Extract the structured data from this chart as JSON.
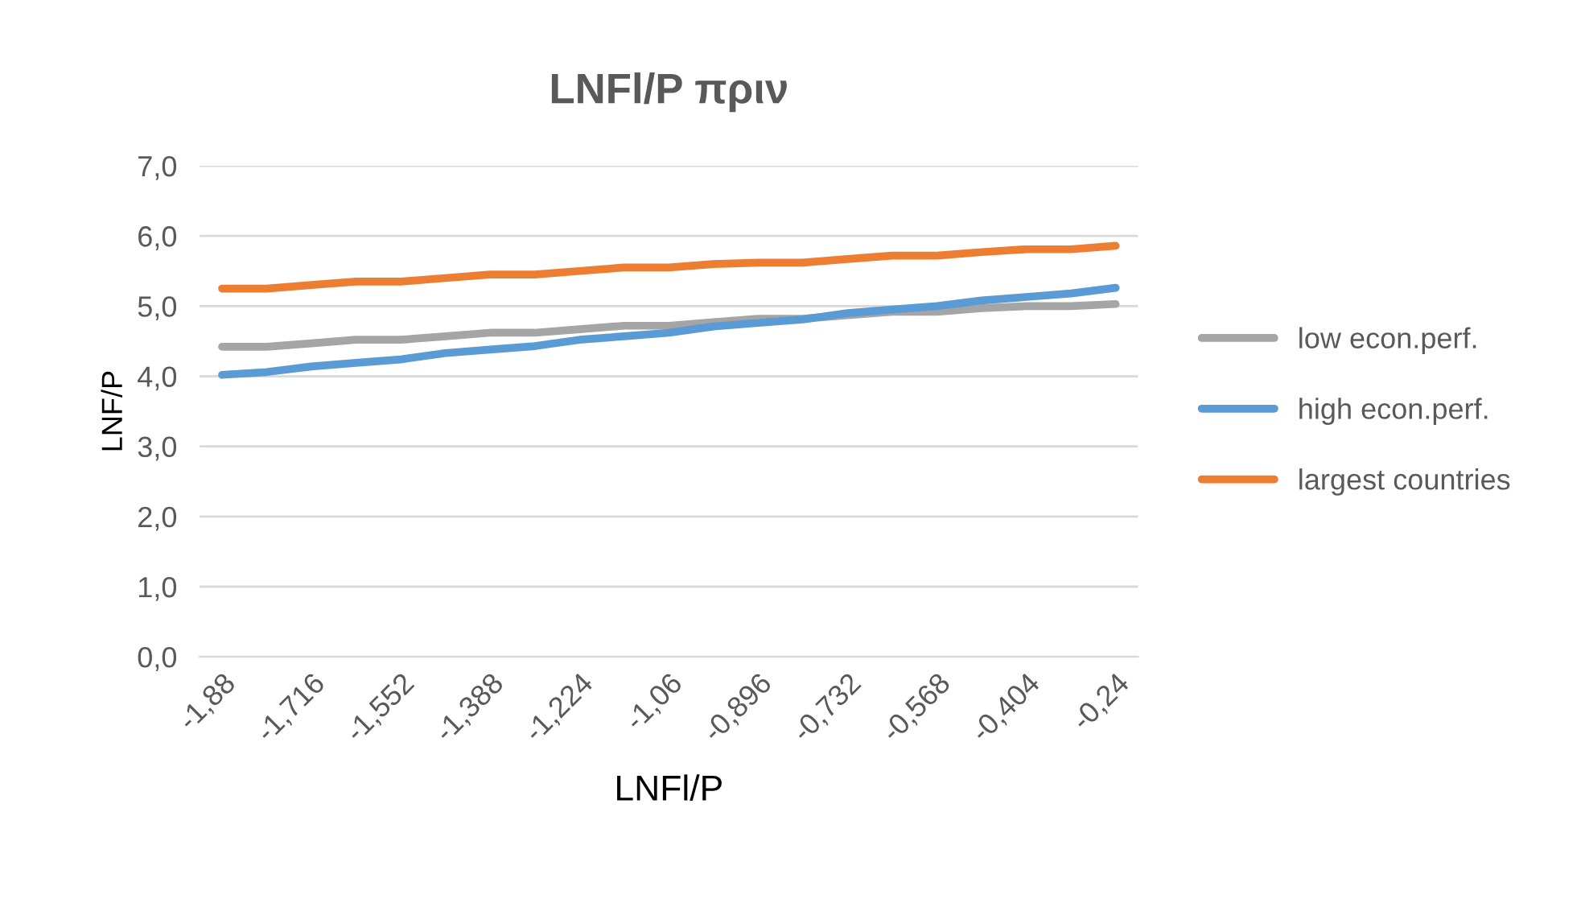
{
  "chart_data": {
    "type": "line",
    "title": "LNFl/P πριν",
    "xlabel": "LNFl/P",
    "ylabel": "LNF/P",
    "categories": [
      "-1,88",
      null,
      "-1,716",
      null,
      "-1,552",
      null,
      "-1,388",
      null,
      "-1,224",
      null,
      "-1,06",
      null,
      "-0,896",
      null,
      "-0,732",
      null,
      "-0,568",
      null,
      "-0,404",
      null,
      "-0,24"
    ],
    "series": [
      {
        "name": "low econ.perf.",
        "color": "#a5a5a5",
        "values": [
          4.42,
          4.42,
          4.47,
          4.52,
          4.52,
          4.57,
          4.62,
          4.62,
          4.67,
          4.72,
          4.72,
          4.77,
          4.82,
          4.82,
          4.87,
          4.92,
          4.92,
          4.97,
          5.0,
          5.0,
          5.03
        ]
      },
      {
        "name": "high econ.perf.",
        "color": "#5b9bd5",
        "values": [
          4.02,
          4.06,
          4.14,
          4.19,
          4.24,
          4.33,
          4.38,
          4.43,
          4.52,
          4.57,
          4.62,
          4.71,
          4.76,
          4.81,
          4.9,
          4.95,
          5.0,
          5.08,
          5.13,
          5.18,
          5.26
        ]
      },
      {
        "name": "largest countries",
        "color": "#ed7d31",
        "values": [
          5.25,
          5.25,
          5.3,
          5.35,
          5.35,
          5.4,
          5.45,
          5.45,
          5.5,
          5.55,
          5.55,
          5.6,
          5.62,
          5.62,
          5.67,
          5.72,
          5.72,
          5.77,
          5.81,
          5.81,
          5.86
        ]
      }
    ],
    "ylim": [
      0,
      7
    ],
    "yticks": [
      {
        "value": 0,
        "label": "0,0"
      },
      {
        "value": 1,
        "label": "1,0"
      },
      {
        "value": 2,
        "label": "2,0"
      },
      {
        "value": 3,
        "label": "3,0"
      },
      {
        "value": 4,
        "label": "4,0"
      },
      {
        "value": 5,
        "label": "5,0"
      },
      {
        "value": 6,
        "label": "6,0"
      },
      {
        "value": 7,
        "label": "7,0"
      }
    ],
    "grid": "y",
    "legend": "right",
    "marker": "none",
    "line_style": "solid"
  }
}
